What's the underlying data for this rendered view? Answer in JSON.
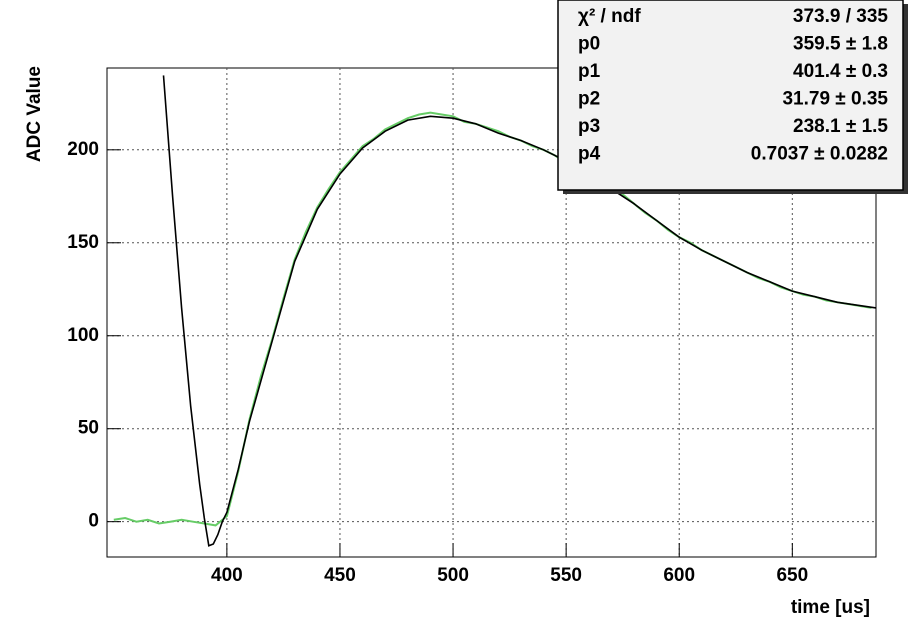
{
  "chart_data": {
    "type": "line",
    "xlabel": "time [us]",
    "ylabel": "ADC Value",
    "xlim": [
      347,
      687
    ],
    "ylim": [
      -19,
      244
    ],
    "xticks": [
      400,
      450,
      500,
      550,
      600,
      650
    ],
    "yticks": [
      0,
      50,
      100,
      150,
      200
    ],
    "grid": true,
    "series": [
      {
        "color": "#66cc66",
        "x": [
          350,
          355,
          360,
          365,
          370,
          375,
          380,
          385,
          390,
          395,
          400,
          405,
          410,
          415,
          420,
          425,
          430,
          435,
          440,
          445,
          450,
          455,
          460,
          465,
          470,
          475,
          480,
          485,
          490,
          495,
          500,
          505,
          510,
          515,
          520,
          525,
          530,
          535,
          540,
          545,
          550,
          555,
          560,
          565,
          570,
          575,
          580,
          585,
          590,
          595,
          600,
          605,
          610,
          615,
          620,
          625,
          630,
          635,
          640,
          645,
          650,
          655,
          660,
          665,
          670,
          675,
          680,
          685
        ],
        "values": [
          1,
          2,
          0,
          1,
          -1,
          0,
          1,
          0,
          -1,
          -2,
          3,
          27,
          55,
          78,
          98,
          120,
          141,
          156,
          169,
          179,
          188,
          195,
          202,
          206,
          211,
          214,
          217,
          219,
          220,
          219,
          218,
          215,
          214,
          212,
          210,
          207,
          205,
          202,
          200,
          197,
          193,
          191,
          187,
          183,
          179,
          176,
          171,
          166,
          162,
          157,
          153,
          150,
          146,
          143,
          140,
          137,
          134,
          131,
          129,
          126,
          124,
          122,
          121,
          119,
          118,
          117,
          116,
          115
        ]
      },
      {
        "color": "#000000",
        "x": [
          372,
          376,
          380,
          384,
          388,
          390,
          392,
          394,
          396,
          398,
          400,
          405,
          410,
          420,
          430,
          440,
          450,
          460,
          470,
          480,
          490,
          500,
          510,
          520,
          530,
          540,
          550,
          560,
          570,
          580,
          590,
          600,
          610,
          620,
          630,
          640,
          650,
          660,
          670,
          687
        ],
        "values": [
          240,
          175,
          115,
          62,
          20,
          2,
          -13,
          -12,
          -7,
          0,
          5,
          28,
          54,
          97,
          140,
          168,
          187,
          201,
          210,
          216,
          218,
          217,
          214,
          209,
          205,
          200,
          194,
          187,
          179,
          171,
          162,
          153,
          146,
          140,
          134,
          129,
          124,
          121,
          118,
          115
        ]
      }
    ],
    "stats": [
      {
        "label": "χ² / ndf",
        "value": "373.9 / 335"
      },
      {
        "label": "p0",
        "value": "359.5 ± 1.8"
      },
      {
        "label": "p1",
        "value": "401.4 ± 0.3"
      },
      {
        "label": "p2",
        "value": "31.79 ± 0.35"
      },
      {
        "label": "p3",
        "value": "238.1 ± 1.5"
      },
      {
        "label": "p4",
        "value": "0.7037 ± 0.0282"
      }
    ]
  }
}
